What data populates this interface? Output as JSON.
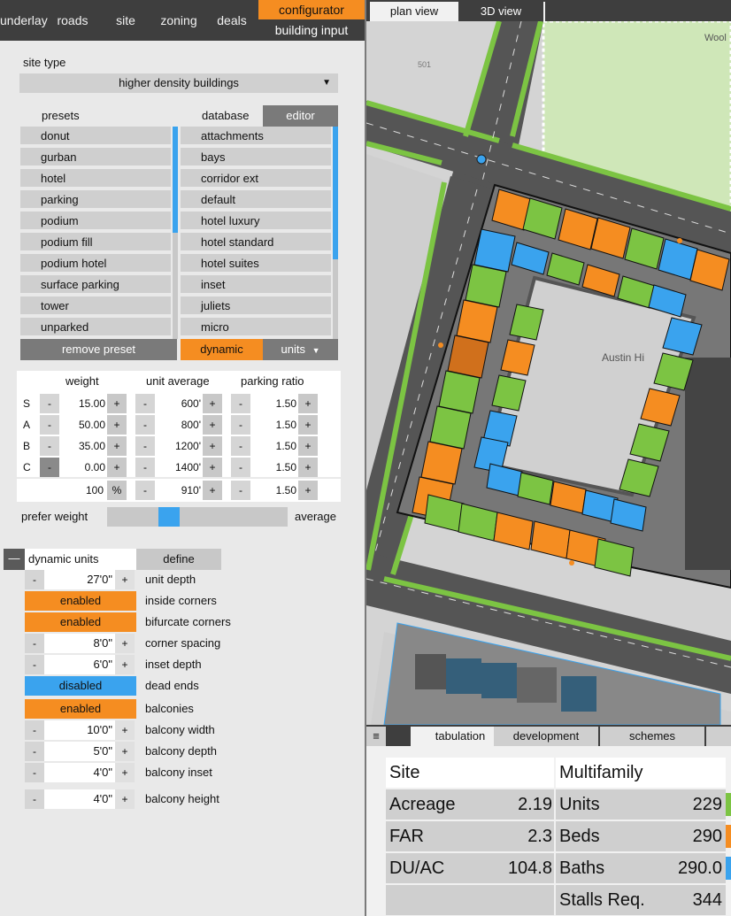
{
  "nav": {
    "tabs": [
      "underlay",
      "roads",
      "site",
      "zoning",
      "deals"
    ],
    "active_top": "configurator",
    "active_sub": "building input"
  },
  "site_type": {
    "label": "site type",
    "value": "higher density buildings"
  },
  "presets": {
    "header": "presets",
    "items": [
      "donut",
      "gurban",
      "hotel",
      "parking",
      "podium",
      "podium fill",
      "podium hotel",
      "surface parking",
      "tower",
      "unparked"
    ],
    "remove_label": "remove preset"
  },
  "database": {
    "header": "database",
    "editor_label": "editor",
    "items": [
      "attachments",
      "bays",
      "corridor ext",
      "default",
      "hotel luxury",
      "hotel standard",
      "hotel suites",
      "inset",
      "juliets",
      "micro"
    ],
    "dynamic_label": "dynamic",
    "units_label": "units"
  },
  "mix": {
    "headers": {
      "weight": "weight",
      "unit_average": "unit average",
      "parking_ratio": "parking ratio"
    },
    "rows": [
      {
        "code": "S",
        "weight": "15.00",
        "unit": "600'",
        "parking": "1.50"
      },
      {
        "code": "A",
        "weight": "50.00",
        "unit": "800'",
        "parking": "1.50"
      },
      {
        "code": "B",
        "weight": "35.00",
        "unit": "1200'",
        "parking": "1.50"
      },
      {
        "code": "C",
        "weight": "0.00",
        "unit": "1400'",
        "parking": "1.50"
      }
    ],
    "total": {
      "weight": "100",
      "pct": "%",
      "unit": "910'",
      "parking": "1.50"
    },
    "minus": "-",
    "plus": "+"
  },
  "prefer": {
    "left": "prefer weight",
    "right": "average",
    "slider_fraction": 0.32
  },
  "dynamic_units": {
    "collapse_icon": "—",
    "title": "dynamic units",
    "define_label": "define",
    "unit_depth": {
      "value": "27'0\"",
      "label": "unit depth"
    },
    "inside_corners": {
      "value": "enabled",
      "label": "inside corners"
    },
    "bifurcate_corners": {
      "value": "enabled",
      "label": "bifurcate corners"
    },
    "corner_spacing": {
      "value": "8'0\"",
      "label": "corner spacing"
    },
    "inset_depth": {
      "value": "6'0\"",
      "label": "inset depth"
    },
    "dead_ends": {
      "value": "disabled",
      "label": "dead ends"
    },
    "balconies": {
      "value": "enabled",
      "label": "balconies"
    },
    "balcony_width": {
      "value": "10'0\"",
      "label": "balcony width"
    },
    "balcony_depth": {
      "value": "5'0\"",
      "label": "balcony depth"
    },
    "balcony_inset": {
      "value": "4'0\"",
      "label": "balcony inset"
    },
    "balcony_height": {
      "value": "4'0\"",
      "label": "balcony height"
    }
  },
  "map": {
    "tabs": {
      "plan": "plan view",
      "view3d": "3D view"
    },
    "labels": {
      "wool": "Wool",
      "num501": "501",
      "austin": "Austin Hi"
    }
  },
  "bottom": {
    "menu_icon": "≡",
    "tabs": [
      "tabulation",
      "development",
      "schemes"
    ],
    "site": {
      "title": "Site",
      "rows": [
        [
          "Acreage",
          "2.19"
        ],
        [
          "FAR",
          "2.3"
        ],
        [
          "DU/AC",
          "104.8"
        ]
      ]
    },
    "multifamily": {
      "title": "Multifamily",
      "rows": [
        [
          "Units",
          "229"
        ],
        [
          "Beds",
          "290"
        ],
        [
          "Baths",
          "290.0"
        ],
        [
          "Stalls Req.",
          "344"
        ]
      ]
    }
  },
  "colors": {
    "accent": "#f58d21",
    "blue": "#3aa3ee",
    "green": "#7cc443",
    "dark": "#3e3e3e"
  }
}
